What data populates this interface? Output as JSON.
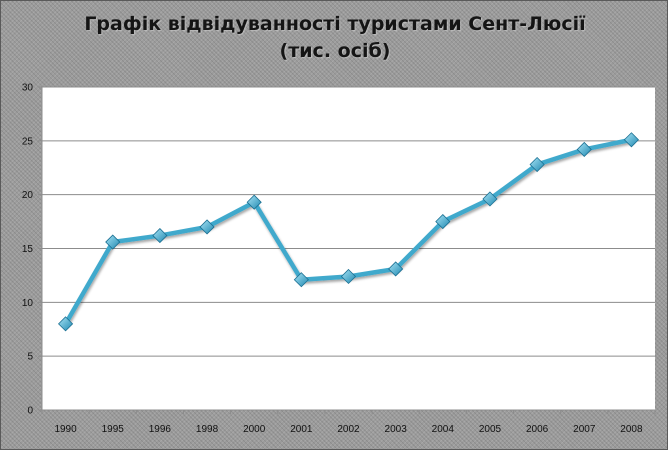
{
  "chart_data": {
    "type": "line",
    "title_line1": "Графік відвідуванності туристами Сент-Люсії",
    "title_line2": "(тис. осіб)",
    "categories": [
      "1990",
      "1995",
      "1996",
      "1998",
      "2000",
      "2001",
      "2002",
      "2003",
      "2004",
      "2005",
      "2006",
      "2007",
      "2008"
    ],
    "series": [
      {
        "values": [
          8.0,
          15.6,
          16.2,
          17.0,
          19.3,
          12.1,
          12.4,
          13.1,
          17.5,
          19.6,
          22.8,
          24.2,
          25.1
        ]
      }
    ],
    "ylim": [
      0,
      30
    ],
    "yticks": [
      0,
      5,
      10,
      15,
      20,
      25,
      30
    ],
    "grid": true,
    "legend": "none",
    "colors": {
      "line": "#3fa9cc",
      "marker_light": "#a9e4f6",
      "marker_dark": "#1e88b0",
      "marker_edge": "#1a6f92",
      "gridline": "#8c8c8c",
      "plot_background": "#ffffff"
    }
  }
}
